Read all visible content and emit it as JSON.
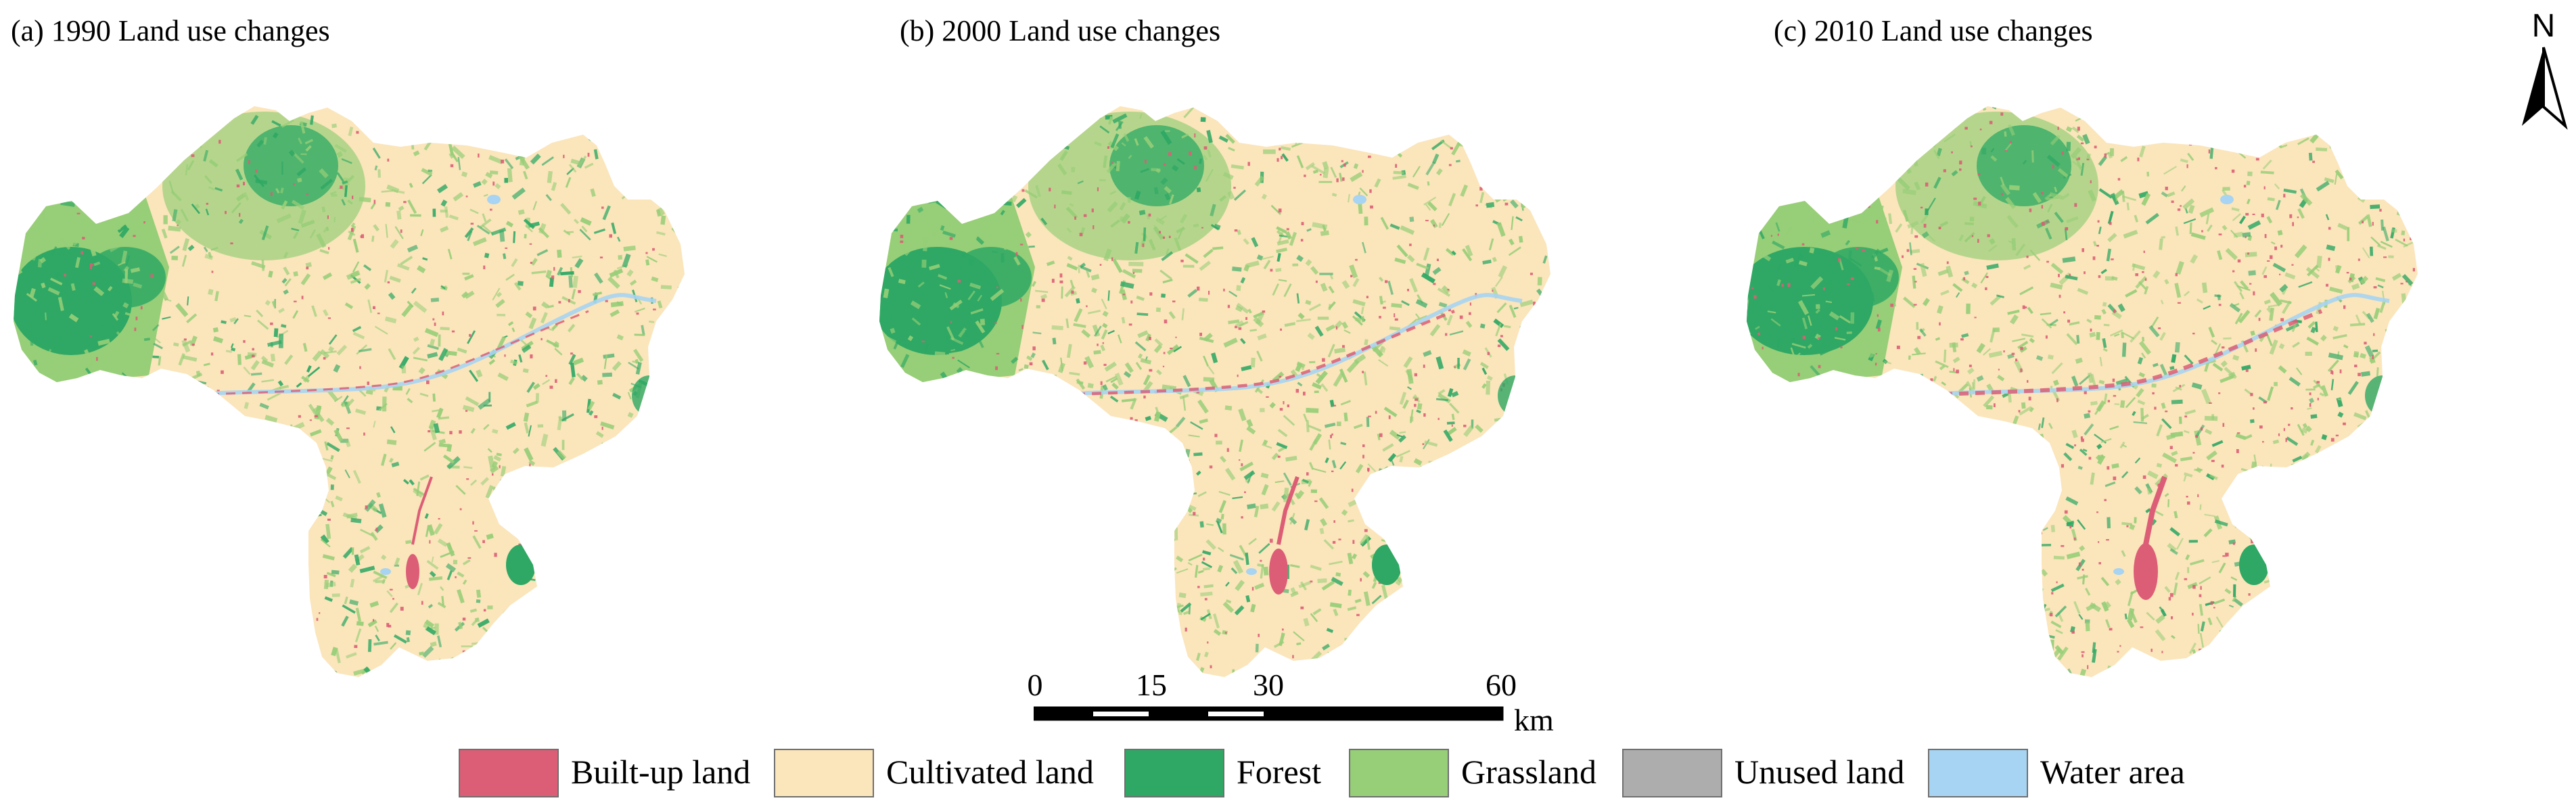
{
  "panels": [
    {
      "title": "(a) 1990 Land use changes"
    },
    {
      "title": "(b) 2000 Land use changes"
    },
    {
      "title": "(c) 2010 Land use changes"
    }
  ],
  "north_arrow": {
    "label": "N",
    "icon": "north-arrow-icon"
  },
  "scale_bar": {
    "ticks": [
      "0",
      "15",
      "30",
      "60"
    ],
    "unit": "km"
  },
  "legend": [
    {
      "label": "Built-up land",
      "color": "#dc5e76"
    },
    {
      "label": "Cultivated land",
      "color": "#fbe5bb"
    },
    {
      "label": "Forest",
      "color": "#2ea864"
    },
    {
      "label": "Grassland",
      "color": "#97ce78"
    },
    {
      "label": "Unused land",
      "color": "#adadad"
    },
    {
      "label": "Water area",
      "color": "#a6d4f2"
    }
  ]
}
